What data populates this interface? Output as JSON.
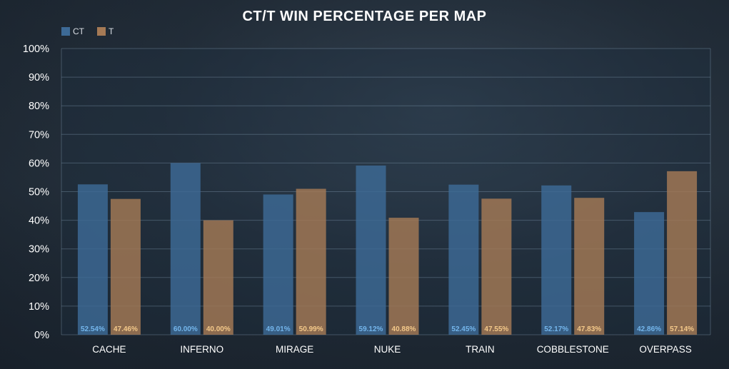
{
  "chart_data": {
    "type": "bar",
    "title": "CT/T WIN PERCENTAGE PER MAP",
    "categories": [
      "CACHE",
      "INFERNO",
      "MIRAGE",
      "NUKE",
      "TRAIN",
      "COBBLESTONE",
      "OVERPASS"
    ],
    "series": [
      {
        "name": "CT",
        "color": "#3d6a96",
        "label_color": "#74b6ec",
        "values": [
          52.54,
          60.0,
          49.01,
          59.12,
          52.45,
          52.17,
          42.86
        ],
        "labels": [
          "52.54%",
          "60.00%",
          "49.01%",
          "59.12%",
          "52.45%",
          "52.17%",
          "42.86%"
        ]
      },
      {
        "name": "T",
        "color": "#a57a55",
        "label_color": "#f4c98a",
        "values": [
          47.46,
          40.0,
          50.99,
          40.88,
          47.55,
          47.83,
          57.14
        ],
        "labels": [
          "47.46%",
          "40.00%",
          "50.99%",
          "40.88%",
          "47.55%",
          "47.83%",
          "57.14%"
        ]
      }
    ],
    "yticks": [
      "0%",
      "10%",
      "20%",
      "30%",
      "40%",
      "50%",
      "60%",
      "70%",
      "80%",
      "90%",
      "100%"
    ],
    "ylim": [
      0,
      100
    ],
    "grid": true,
    "legend_position": "top-left"
  }
}
